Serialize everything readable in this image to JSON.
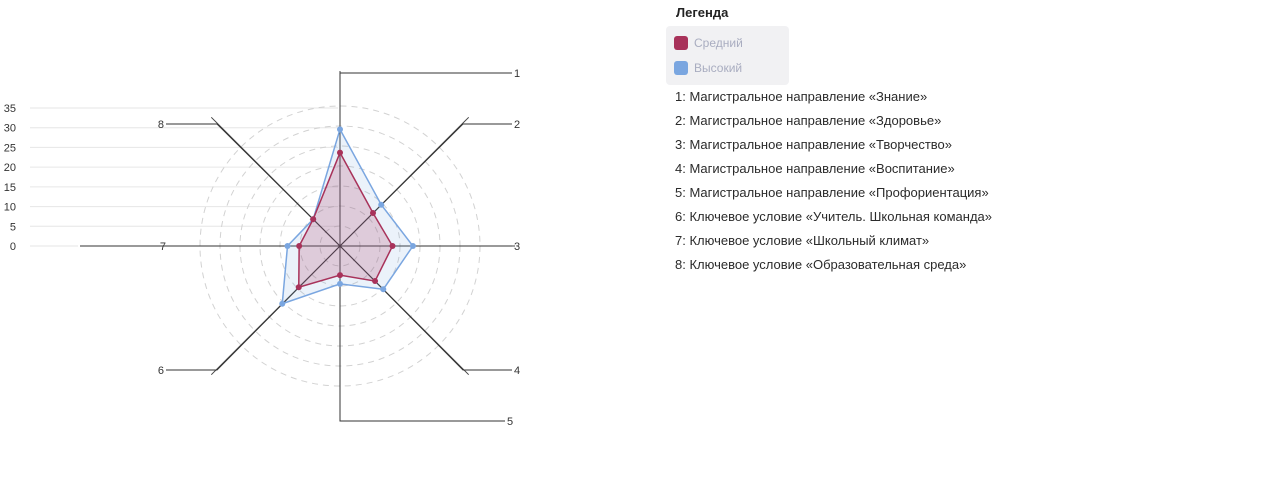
{
  "chart_data": {
    "type": "radar",
    "axes": [
      "1",
      "2",
      "3",
      "4",
      "5",
      "6",
      "7",
      "8"
    ],
    "series": [
      {
        "name": "Средний",
        "color": "#a8325a",
        "values": [
          32,
          16,
          18,
          17,
          10,
          20,
          14,
          13
        ]
      },
      {
        "name": "Высокий",
        "color": "#7aa6e0",
        "values": [
          40,
          20,
          25,
          21,
          13,
          28,
          18,
          13
        ]
      }
    ],
    "y_ticks": [
      0,
      5,
      10,
      15,
      20,
      25,
      30,
      35
    ],
    "ylim": [
      0,
      35
    ],
    "grid": true
  },
  "legend": {
    "title": "Легенда",
    "items": [
      {
        "label": "Средний",
        "color": "#a8325a"
      },
      {
        "label": "Высокий",
        "color": "#7aa6e0"
      }
    ]
  },
  "axis_descriptions": [
    "1: Магистральное направление «Знание»",
    "2: Магистральное направление «Здоровье»",
    "3: Магистральное направление «Творчество»",
    "4: Магистральное направление «Воспитание»",
    "5: Магистральное направление «Профориентация»",
    "6: Ключевое условие «Учитель. Школьная команда»",
    "7: Ключевое условие «Школьный климат»",
    "8: Ключевое условие «Образовательная среда»"
  ]
}
